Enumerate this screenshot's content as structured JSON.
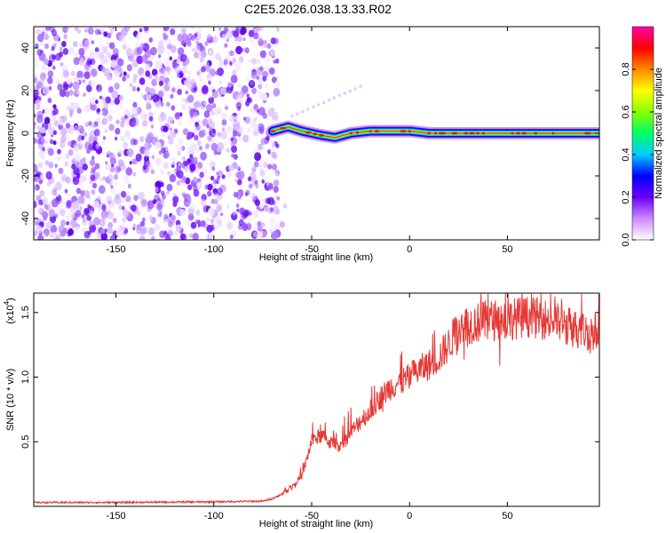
{
  "figure": {
    "title": "C2E5.2026.038.13.33.R02"
  },
  "chart_data": [
    {
      "type": "heatmap",
      "xlabel": "Height of straight line (km)",
      "ylabel": "Frequency (Hz)",
      "xlim": [
        -192,
        97
      ],
      "ylim": [
        -50,
        50
      ],
      "x_ticks": [
        "-150",
        "-100",
        "-50",
        "0",
        "50"
      ],
      "x_tick_values": [
        -150,
        -100,
        -50,
        0,
        50
      ],
      "y_ticks": [
        "-40",
        "-20",
        "0",
        "20",
        "40"
      ],
      "y_tick_values": [
        -40,
        -20,
        0,
        20,
        40
      ],
      "noise_region_x": [
        -192,
        -67
      ],
      "signal_band": {
        "x_start": -72,
        "x_end": 97,
        "frequency_hz": 0,
        "note_points": [
          {
            "x": -70,
            "f": 1
          },
          {
            "x": -62,
            "f": 3
          },
          {
            "x": -55,
            "f": 1
          },
          {
            "x": -45,
            "f": -1
          },
          {
            "x": -38,
            "f": -2
          },
          {
            "x": -30,
            "f": 0
          },
          {
            "x": -20,
            "f": 1
          },
          {
            "x": -10,
            "f": 1
          },
          {
            "x": 0,
            "f": 1
          },
          {
            "x": 10,
            "f": 0
          },
          {
            "x": 20,
            "f": 0
          },
          {
            "x": 97,
            "f": 0
          }
        ]
      },
      "colorbar": {
        "label": "Normalized spectral amplitude",
        "ticks": [
          "0.0",
          "0.2",
          "0.4",
          "0.6",
          "0.8"
        ],
        "tick_values": [
          0.0,
          0.2,
          0.4,
          0.6,
          0.8
        ],
        "range": [
          0,
          1
        ],
        "colors": [
          "#ffffff",
          "#cc88ff",
          "#6a00ff",
          "#0000ff",
          "#00ccff",
          "#00ff66",
          "#88ff00",
          "#ffff00",
          "#ff8800",
          "#ff0000",
          "#ff00aa"
        ]
      }
    },
    {
      "type": "line",
      "xlabel": "Height of straight line (km)",
      "ylabel": "SNR (10 * v/v)",
      "y_multiplier_label": "(x10",
      "y_multiplier_exp": "4",
      "xlim": [
        -192,
        97
      ],
      "ylim": [
        0,
        16500
      ],
      "x_ticks": [
        "-150",
        "-100",
        "-50",
        "0",
        "50"
      ],
      "x_tick_values": [
        -150,
        -100,
        -50,
        0,
        50
      ],
      "y_ticks": [
        "0.5",
        "1.0",
        "1.5"
      ],
      "y_tick_values": [
        5000,
        10000,
        15000
      ],
      "color": "#e53935",
      "series": [
        {
          "x": [
            -192,
            -150,
            -100,
            -75,
            -70,
            -65,
            -60,
            -55,
            -52,
            -50,
            -45,
            -40,
            -35,
            -30,
            -25,
            -20,
            -15,
            -10,
            -5,
            0,
            5,
            10,
            15,
            20,
            25,
            30,
            40,
            50,
            60,
            70,
            80,
            90,
            97
          ],
          "values": [
            300,
            300,
            350,
            400,
            600,
            1000,
            1600,
            2400,
            4000,
            5200,
            5600,
            5000,
            4800,
            5800,
            6800,
            7600,
            8600,
            9400,
            9800,
            10200,
            10800,
            11200,
            11800,
            12800,
            14200,
            14400,
            14700,
            14800,
            15000,
            14800,
            14300,
            13800,
            13800
          ]
        }
      ]
    }
  ]
}
